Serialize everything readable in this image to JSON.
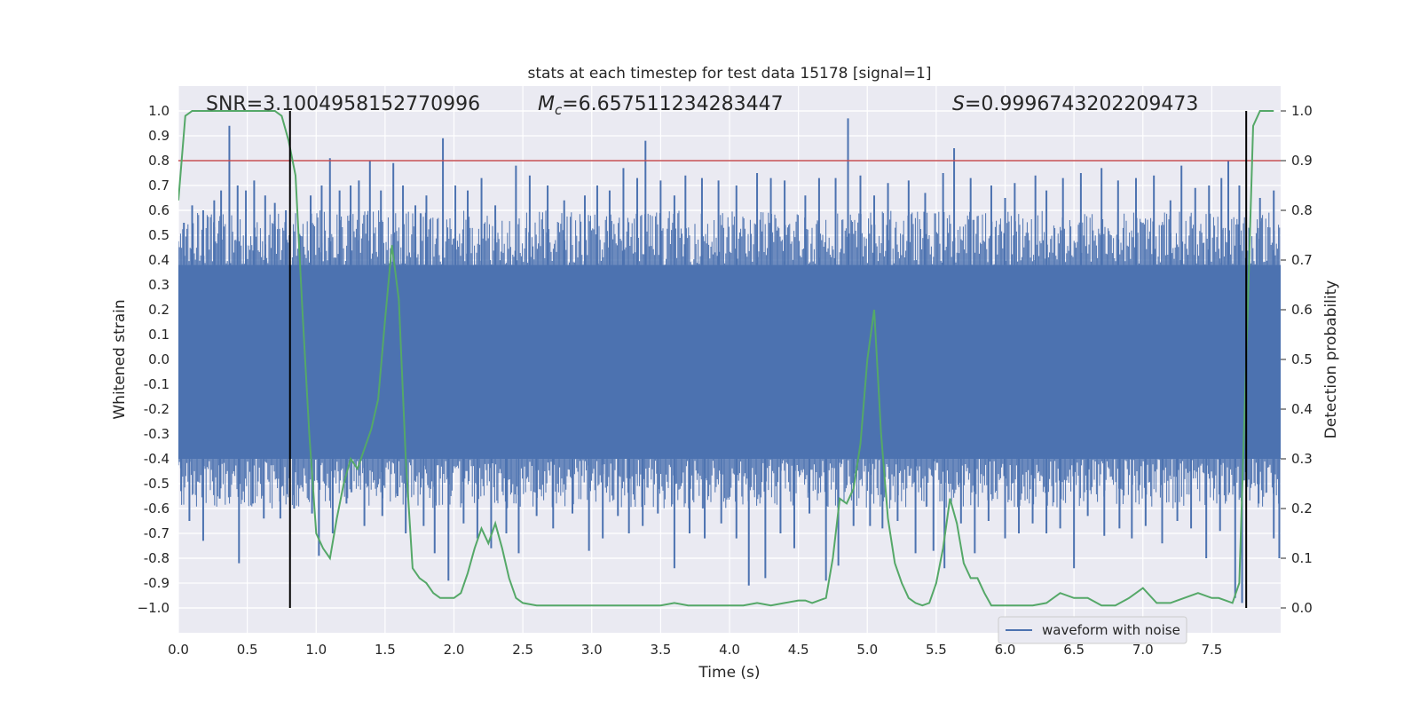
{
  "chart_data": {
    "type": "line",
    "title": "stats at each timestep for test data 15178 [signal=1]",
    "xlabel": "Time (s)",
    "ylabel": "Whitened strain",
    "y2label": "Detection probability",
    "xlim": [
      0.0,
      8.0
    ],
    "ylim": [
      -1.1,
      1.1
    ],
    "y2lim": [
      -0.05,
      1.05
    ],
    "grid": true,
    "legend": {
      "position": "lower-right",
      "entries": [
        "waveform with noise"
      ]
    },
    "xticks": [
      "0.0",
      "0.5",
      "1.0",
      "1.5",
      "2.0",
      "2.5",
      "3.0",
      "3.5",
      "4.0",
      "4.5",
      "5.0",
      "5.5",
      "6.0",
      "6.5",
      "7.0",
      "7.5"
    ],
    "xtick_values": [
      0.0,
      0.5,
      1.0,
      1.5,
      2.0,
      2.5,
      3.0,
      3.5,
      4.0,
      4.5,
      5.0,
      5.5,
      6.0,
      6.5,
      7.0,
      7.5
    ],
    "yticks": [
      "1.0",
      "0.9",
      "0.8",
      "0.7",
      "0.6",
      "0.5",
      "0.4",
      "0.3",
      "0.2",
      "0.1",
      "0.0",
      "-0.1",
      "-0.2",
      "-0.3",
      "-0.4",
      "-0.5",
      "-0.6",
      "-0.7",
      "-0.8",
      "-0.9",
      "−1.0"
    ],
    "ytick_values": [
      1.0,
      0.9,
      0.8,
      0.7,
      0.6,
      0.5,
      0.4,
      0.3,
      0.2,
      0.1,
      0.0,
      -0.1,
      -0.2,
      -0.3,
      -0.4,
      -0.5,
      -0.6,
      -0.7,
      -0.8,
      -0.9,
      -1.0
    ],
    "y2ticks": [
      "1.0",
      "0.9",
      "0.8",
      "0.7",
      "0.6",
      "0.5",
      "0.4",
      "0.3",
      "0.2",
      "0.1",
      "0.0"
    ],
    "y2tick_values": [
      1.0,
      0.9,
      0.8,
      0.7,
      0.6,
      0.5,
      0.4,
      0.3,
      0.2,
      0.1,
      0.0
    ],
    "annotations": {
      "snr": "SNR=3.1004958152770996",
      "mc_symbol": "M",
      "mc_sub": "c",
      "mc_value": "=6.657511234283447",
      "s_symbol": "S",
      "s_value": "=0.9996743202209473"
    },
    "threshold": {
      "y2": 0.9,
      "color": "#c44e52"
    },
    "vlines": {
      "x": [
        0.81,
        7.75
      ],
      "y2_range": [
        0.0,
        1.0
      ],
      "color": "#000000"
    },
    "series": [
      {
        "name": "waveform with noise",
        "axis": "left",
        "color": "#4c72b0",
        "description_only": "dense noise band",
        "band_core": [
          -0.4,
          0.38
        ],
        "spikes_up": [
          [
            0.04,
            0.55
          ],
          [
            0.1,
            0.62
          ],
          [
            0.18,
            0.6
          ],
          [
            0.26,
            0.64
          ],
          [
            0.31,
            0.68
          ],
          [
            0.37,
            0.94
          ],
          [
            0.43,
            0.7
          ],
          [
            0.49,
            0.68
          ],
          [
            0.55,
            0.72
          ],
          [
            0.63,
            0.66
          ],
          [
            0.7,
            0.63
          ],
          [
            0.78,
            0.6
          ],
          [
            0.88,
            0.5
          ],
          [
            0.96,
            0.66
          ],
          [
            1.04,
            0.7
          ],
          [
            1.1,
            0.81
          ],
          [
            1.17,
            0.68
          ],
          [
            1.25,
            0.7
          ],
          [
            1.31,
            0.72
          ],
          [
            1.39,
            0.8
          ],
          [
            1.47,
            0.68
          ],
          [
            1.56,
            0.79
          ],
          [
            1.63,
            0.7
          ],
          [
            1.72,
            0.62
          ],
          [
            1.8,
            0.66
          ],
          [
            1.92,
            0.89
          ],
          [
            2.01,
            0.7
          ],
          [
            2.1,
            0.68
          ],
          [
            2.2,
            0.73
          ],
          [
            2.3,
            0.62
          ],
          [
            2.45,
            0.78
          ],
          [
            2.55,
            0.74
          ],
          [
            2.68,
            0.7
          ],
          [
            2.8,
            0.64
          ],
          [
            2.95,
            0.66
          ],
          [
            3.04,
            0.7
          ],
          [
            3.13,
            0.68
          ],
          [
            3.23,
            0.77
          ],
          [
            3.33,
            0.73
          ],
          [
            3.39,
            0.88
          ],
          [
            3.5,
            0.72
          ],
          [
            3.6,
            0.66
          ],
          [
            3.68,
            0.74
          ],
          [
            3.8,
            0.73
          ],
          [
            3.92,
            0.72
          ],
          [
            4.05,
            0.7
          ],
          [
            4.2,
            0.75
          ],
          [
            4.3,
            0.73
          ],
          [
            4.4,
            0.72
          ],
          [
            4.55,
            0.66
          ],
          [
            4.65,
            0.73
          ],
          [
            4.77,
            0.73
          ],
          [
            4.86,
            0.97
          ],
          [
            4.95,
            0.74
          ],
          [
            5.05,
            0.66
          ],
          [
            5.15,
            0.71
          ],
          [
            5.3,
            0.72
          ],
          [
            5.42,
            0.67
          ],
          [
            5.55,
            0.75
          ],
          [
            5.63,
            0.85
          ],
          [
            5.75,
            0.73
          ],
          [
            5.9,
            0.7
          ],
          [
            6.0,
            0.65
          ],
          [
            6.07,
            0.71
          ],
          [
            6.22,
            0.74
          ],
          [
            6.3,
            0.68
          ],
          [
            6.42,
            0.73
          ],
          [
            6.55,
            0.75
          ],
          [
            6.7,
            0.77
          ],
          [
            6.82,
            0.72
          ],
          [
            6.95,
            0.73
          ],
          [
            7.08,
            0.74
          ],
          [
            7.2,
            0.64
          ],
          [
            7.28,
            0.78
          ],
          [
            7.38,
            0.69
          ],
          [
            7.48,
            0.7
          ],
          [
            7.57,
            0.73
          ],
          [
            7.62,
            0.8
          ],
          [
            7.7,
            0.7
          ],
          [
            7.85,
            0.65
          ],
          [
            7.95,
            0.68
          ]
        ],
        "spikes_down": [
          [
            0.02,
            -0.53
          ],
          [
            0.08,
            -0.65
          ],
          [
            0.18,
            -0.73
          ],
          [
            0.3,
            -0.56
          ],
          [
            0.44,
            -0.82
          ],
          [
            0.54,
            -0.58
          ],
          [
            0.62,
            -0.64
          ],
          [
            0.74,
            -0.64
          ],
          [
            0.84,
            -0.6
          ],
          [
            0.97,
            -0.62
          ],
          [
            1.02,
            -0.79
          ],
          [
            1.12,
            -0.7
          ],
          [
            1.22,
            -0.58
          ],
          [
            1.35,
            -0.67
          ],
          [
            1.48,
            -0.63
          ],
          [
            1.59,
            -0.55
          ],
          [
            1.65,
            -0.7
          ],
          [
            1.78,
            -0.67
          ],
          [
            1.86,
            -0.78
          ],
          [
            1.96,
            -0.89
          ],
          [
            2.07,
            -0.66
          ],
          [
            2.17,
            -0.72
          ],
          [
            2.27,
            -0.76
          ],
          [
            2.38,
            -0.7
          ],
          [
            2.47,
            -0.78
          ],
          [
            2.6,
            -0.63
          ],
          [
            2.72,
            -0.68
          ],
          [
            2.86,
            -0.62
          ],
          [
            2.98,
            -0.77
          ],
          [
            3.08,
            -0.72
          ],
          [
            3.19,
            -0.63
          ],
          [
            3.27,
            -0.7
          ],
          [
            3.37,
            -0.67
          ],
          [
            3.48,
            -0.62
          ],
          [
            3.6,
            -0.84
          ],
          [
            3.71,
            -0.7
          ],
          [
            3.82,
            -0.72
          ],
          [
            3.94,
            -0.66
          ],
          [
            4.05,
            -0.72
          ],
          [
            4.14,
            -0.91
          ],
          [
            4.26,
            -0.88
          ],
          [
            4.37,
            -0.7
          ],
          [
            4.47,
            -0.76
          ],
          [
            4.58,
            -0.62
          ],
          [
            4.7,
            -0.89
          ],
          [
            4.79,
            -0.83
          ],
          [
            4.9,
            -0.67
          ],
          [
            5.02,
            -0.67
          ],
          [
            5.11,
            -0.68
          ],
          [
            5.22,
            -0.65
          ],
          [
            5.35,
            -0.78
          ],
          [
            5.48,
            -0.77
          ],
          [
            5.56,
            -0.84
          ],
          [
            5.68,
            -0.66
          ],
          [
            5.78,
            -0.78
          ],
          [
            5.88,
            -0.65
          ],
          [
            6.0,
            -0.72
          ],
          [
            6.1,
            -0.7
          ],
          [
            6.2,
            -0.66
          ],
          [
            6.3,
            -0.7
          ],
          [
            6.4,
            -0.68
          ],
          [
            6.5,
            -0.84
          ],
          [
            6.6,
            -0.63
          ],
          [
            6.72,
            -0.71
          ],
          [
            6.83,
            -0.68
          ],
          [
            6.92,
            -0.72
          ],
          [
            7.02,
            -0.67
          ],
          [
            7.14,
            -0.74
          ],
          [
            7.25,
            -0.65
          ],
          [
            7.35,
            -0.68
          ],
          [
            7.46,
            -0.8
          ],
          [
            7.56,
            -0.69
          ],
          [
            7.67,
            -0.96
          ],
          [
            7.72,
            -0.98
          ],
          [
            7.84,
            -0.58
          ],
          [
            7.95,
            -0.72
          ],
          [
            7.99,
            -0.8
          ]
        ]
      },
      {
        "name": "",
        "axis": "right",
        "color": "#55a868",
        "x": [
          0.0,
          0.05,
          0.1,
          0.15,
          0.2,
          0.25,
          0.3,
          0.35,
          0.4,
          0.45,
          0.5,
          0.55,
          0.6,
          0.65,
          0.7,
          0.75,
          0.8,
          0.85,
          0.9,
          0.95,
          1.0,
          1.05,
          1.1,
          1.15,
          1.2,
          1.25,
          1.3,
          1.35,
          1.4,
          1.45,
          1.5,
          1.55,
          1.6,
          1.65,
          1.7,
          1.75,
          1.8,
          1.85,
          1.9,
          1.95,
          2.0,
          2.05,
          2.1,
          2.15,
          2.2,
          2.25,
          2.3,
          2.35,
          2.4,
          2.45,
          2.5,
          2.6,
          2.7,
          2.8,
          2.9,
          3.0,
          3.1,
          3.2,
          3.3,
          3.4,
          3.5,
          3.6,
          3.7,
          3.8,
          3.9,
          4.0,
          4.1,
          4.2,
          4.3,
          4.4,
          4.5,
          4.55,
          4.6,
          4.65,
          4.7,
          4.75,
          4.8,
          4.85,
          4.9,
          4.95,
          5.0,
          5.05,
          5.1,
          5.15,
          5.2,
          5.25,
          5.3,
          5.35,
          5.4,
          5.45,
          5.5,
          5.55,
          5.6,
          5.65,
          5.7,
          5.75,
          5.8,
          5.85,
          5.9,
          5.95,
          6.0,
          6.1,
          6.2,
          6.3,
          6.4,
          6.5,
          6.6,
          6.7,
          6.8,
          6.9,
          7.0,
          7.1,
          7.2,
          7.25,
          7.3,
          7.4,
          7.5,
          7.55,
          7.6,
          7.65,
          7.7,
          7.75,
          7.8,
          7.85,
          7.9,
          7.95
        ],
        "values": [
          0.82,
          0.99,
          1.0,
          1.0,
          1.0,
          1.0,
          1.0,
          1.0,
          1.0,
          1.0,
          1.0,
          1.0,
          1.0,
          1.0,
          1.0,
          0.99,
          0.94,
          0.87,
          0.6,
          0.35,
          0.15,
          0.12,
          0.1,
          0.18,
          0.25,
          0.3,
          0.28,
          0.32,
          0.36,
          0.42,
          0.58,
          0.73,
          0.62,
          0.3,
          0.08,
          0.06,
          0.05,
          0.03,
          0.02,
          0.02,
          0.02,
          0.03,
          0.07,
          0.12,
          0.16,
          0.13,
          0.17,
          0.12,
          0.06,
          0.02,
          0.01,
          0.005,
          0.005,
          0.005,
          0.005,
          0.005,
          0.005,
          0.005,
          0.005,
          0.005,
          0.005,
          0.01,
          0.005,
          0.005,
          0.005,
          0.005,
          0.005,
          0.01,
          0.005,
          0.01,
          0.015,
          0.015,
          0.01,
          0.015,
          0.02,
          0.1,
          0.22,
          0.21,
          0.24,
          0.33,
          0.5,
          0.6,
          0.35,
          0.18,
          0.09,
          0.05,
          0.02,
          0.01,
          0.005,
          0.01,
          0.05,
          0.12,
          0.22,
          0.17,
          0.09,
          0.06,
          0.06,
          0.03,
          0.005,
          0.005,
          0.005,
          0.005,
          0.005,
          0.01,
          0.03,
          0.02,
          0.02,
          0.005,
          0.005,
          0.02,
          0.04,
          0.01,
          0.01,
          0.015,
          0.02,
          0.03,
          0.02,
          0.02,
          0.015,
          0.01,
          0.05,
          0.5,
          0.97,
          1.0,
          1.0,
          1.0
        ]
      }
    ]
  }
}
